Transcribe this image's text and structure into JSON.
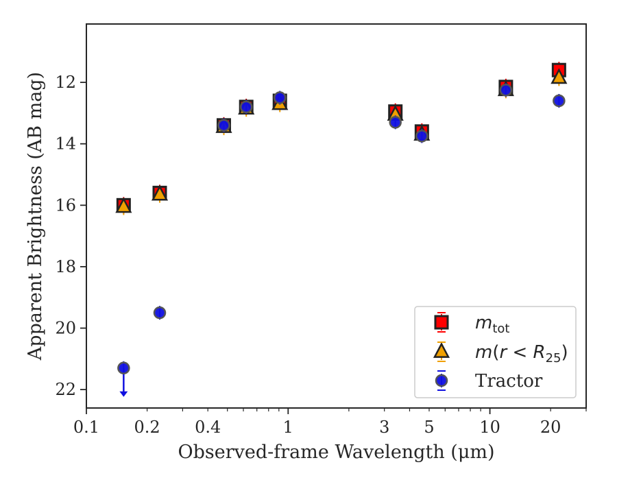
{
  "chart_data": {
    "type": "scatter",
    "xlabel": "Observed-frame Wavelength (μm)",
    "ylabel": "Apparent Brightness (AB mag)",
    "x_scale": "log",
    "y_inverted": true,
    "xlim": [
      0.1,
      30
    ],
    "ylim": [
      22.6,
      10.1
    ],
    "x_ticks": [
      {
        "value": 0.1,
        "label": "0.1"
      },
      {
        "value": 0.2,
        "label": "0.2"
      },
      {
        "value": 0.4,
        "label": "0.4"
      },
      {
        "value": 1,
        "label": "1"
      },
      {
        "value": 3,
        "label": "3"
      },
      {
        "value": 5,
        "label": "5"
      },
      {
        "value": 10,
        "label": "10"
      },
      {
        "value": 20,
        "label": "20"
      }
    ],
    "y_ticks": [
      {
        "value": 12,
        "label": "12"
      },
      {
        "value": 14,
        "label": "14"
      },
      {
        "value": 16,
        "label": "16"
      },
      {
        "value": 18,
        "label": "18"
      },
      {
        "value": 20,
        "label": "20"
      },
      {
        "value": 22,
        "label": "22"
      }
    ],
    "grid": false,
    "legend_position": "bottom-right",
    "series": [
      {
        "name": "m_tot",
        "marker": "square",
        "color": "#ff0000",
        "edge_color": "#222222",
        "points": [
          {
            "x": 0.153,
            "y": 16.0
          },
          {
            "x": 0.231,
            "y": 15.6
          },
          {
            "x": 0.48,
            "y": 13.4
          },
          {
            "x": 0.62,
            "y": 12.8
          },
          {
            "x": 0.91,
            "y": 12.6
          },
          {
            "x": 3.4,
            "y": 12.95
          },
          {
            "x": 4.6,
            "y": 13.6
          },
          {
            "x": 12.0,
            "y": 12.15
          },
          {
            "x": 22.0,
            "y": 11.6
          }
        ]
      },
      {
        "name": "m(r < R25)",
        "marker": "triangle",
        "color": "#f0a000",
        "edge_color": "#222222",
        "points": [
          {
            "x": 0.153,
            "y": 16.05
          },
          {
            "x": 0.231,
            "y": 15.65
          },
          {
            "x": 0.48,
            "y": 13.45
          },
          {
            "x": 0.62,
            "y": 12.85
          },
          {
            "x": 0.91,
            "y": 12.7
          },
          {
            "x": 3.4,
            "y": 13.05
          },
          {
            "x": 4.6,
            "y": 13.7
          },
          {
            "x": 12.0,
            "y": 12.25
          },
          {
            "x": 22.0,
            "y": 11.85
          }
        ]
      },
      {
        "name": "Tractor",
        "marker": "circle",
        "color": "#1010e0",
        "edge_color": "#555555",
        "points": [
          {
            "x": 0.153,
            "y": 21.3,
            "upper_limit": true
          },
          {
            "x": 0.231,
            "y": 19.5
          },
          {
            "x": 0.48,
            "y": 13.4
          },
          {
            "x": 0.62,
            "y": 12.8
          },
          {
            "x": 0.91,
            "y": 12.5
          },
          {
            "x": 3.4,
            "y": 13.3
          },
          {
            "x": 4.6,
            "y": 13.75
          },
          {
            "x": 12.0,
            "y": 12.25
          },
          {
            "x": 22.0,
            "y": 12.6
          }
        ]
      }
    ]
  }
}
